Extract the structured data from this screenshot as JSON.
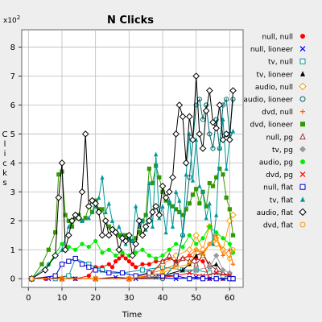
{
  "chart_data": {
    "type": "line",
    "title": "N Clicks",
    "xlabel": "Time",
    "ylabel": "Clicks",
    "y_multiplier_label": "x10",
    "y_multiplier_exp": "2",
    "xlim": [
      -2,
      64
    ],
    "ylim": [
      -0.3,
      8.6
    ],
    "x_ticks": [
      0,
      10,
      20,
      30,
      40,
      50,
      60
    ],
    "y_ticks": [
      0,
      1,
      2,
      3,
      4,
      5,
      6,
      7,
      8
    ],
    "grid": true,
    "legend_position": "right",
    "series": [
      {
        "name": "null, null",
        "color": "#ff0000",
        "marker": "circle-filled",
        "x": [
          1,
          5,
          10,
          14,
          18,
          20,
          22,
          24,
          25,
          26,
          27,
          28,
          29,
          30,
          31,
          32,
          34,
          36,
          38,
          40,
          42,
          44,
          46,
          48,
          50,
          52,
          54,
          56,
          58,
          60,
          61
        ],
        "y": [
          0,
          0,
          0,
          0,
          0.1,
          0.4,
          0.4,
          0.5,
          0.4,
          0.6,
          0.7,
          0.8,
          0.7,
          0.6,
          0.5,
          0.4,
          0.5,
          0.5,
          0.6,
          0.6,
          0.7,
          0.6,
          0.7,
          0.8,
          0.7,
          0.6,
          0,
          0,
          0,
          0,
          0
        ]
      },
      {
        "name": "null, lioneer",
        "color": "#0000ff",
        "marker": "x",
        "x": [
          1,
          6,
          12,
          14,
          20,
          26,
          32,
          38,
          44,
          50,
          54,
          58,
          61
        ],
        "y": [
          0,
          0,
          0.1,
          0,
          0,
          0.05,
          0,
          0.05,
          0,
          0.05,
          0,
          0,
          0
        ]
      },
      {
        "name": "tv, null",
        "color": "#009999",
        "marker": "square-open",
        "x": [
          1,
          8,
          12,
          14,
          18,
          22,
          28,
          34,
          40,
          46,
          50,
          54,
          58,
          61
        ],
        "y": [
          0,
          0,
          0.1,
          0.7,
          0.5,
          0.3,
          0.2,
          0.3,
          0.4,
          0.3,
          0.3,
          0.2,
          0.1,
          0
        ]
      },
      {
        "name": "tv, lioneer",
        "color": "#000000",
        "marker": "triangle-filled",
        "x": [
          1,
          10,
          20,
          30,
          40,
          46,
          48,
          50,
          52,
          54,
          56,
          58,
          61
        ],
        "y": [
          0,
          0,
          0,
          0,
          0.1,
          0.3,
          0.5,
          0.8,
          0.9,
          0.4,
          0.5,
          0.2,
          0
        ]
      },
      {
        "name": "audio, null",
        "color": "#ff9900",
        "marker": "diamond-open",
        "x": [
          1,
          10,
          20,
          30,
          36,
          40,
          44,
          48,
          50,
          52,
          54,
          56,
          58,
          60,
          61
        ],
        "y": [
          0,
          0,
          0,
          0,
          0.2,
          0.5,
          0.8,
          1.0,
          1.5,
          1.0,
          1.8,
          1.2,
          1.0,
          2.0,
          2.2
        ]
      },
      {
        "name": "audio, lioneer",
        "color": "#006666",
        "marker": "circle-open",
        "x": [
          1,
          10,
          20,
          30,
          40,
          44,
          46,
          48,
          50,
          51,
          52,
          53,
          54,
          55,
          56,
          57,
          58,
          59,
          60,
          61
        ],
        "y": [
          0,
          0,
          0,
          0,
          0,
          0.5,
          1.5,
          3.5,
          6.0,
          6.2,
          5.5,
          6.0,
          5.0,
          4.5,
          5.5,
          4.5,
          6.0,
          6.2,
          5.0,
          6.2
        ]
      },
      {
        "name": "dvd, null",
        "color": "#ff6600",
        "marker": "plus",
        "x": [
          1,
          10,
          20,
          30,
          40,
          44,
          48,
          50,
          52,
          54,
          56,
          58,
          60,
          61
        ],
        "y": [
          0,
          0,
          0,
          0,
          0.3,
          0.5,
          0.8,
          1.0,
          0.9,
          1.2,
          1.5,
          0.8,
          1.0,
          0.5
        ]
      },
      {
        "name": "dvd, lioneer",
        "color": "#339900",
        "marker": "square-filled",
        "x": [
          1,
          4,
          6,
          8,
          9,
          10,
          11,
          12,
          13,
          14,
          15,
          16,
          17,
          18,
          19,
          20,
          21,
          22,
          23,
          24,
          25,
          26,
          27,
          28,
          29,
          30,
          31,
          32,
          33,
          34,
          35,
          36,
          37,
          38,
          39,
          40,
          41,
          42,
          43,
          44,
          45,
          46,
          47,
          48,
          49,
          50,
          51,
          52,
          53,
          54,
          55,
          56,
          57,
          58,
          59,
          60,
          61
        ],
        "y": [
          0,
          0.5,
          1.0,
          1.6,
          3.6,
          3.7,
          2.2,
          2.0,
          1.8,
          2.1,
          2.2,
          2.0,
          2.1,
          2.5,
          2.3,
          2.7,
          2.4,
          2.4,
          2.0,
          1.8,
          1.7,
          1.6,
          1.5,
          1.5,
          1.5,
          1.4,
          1.3,
          1.4,
          1.6,
          2.0,
          2.2,
          3.8,
          3.3,
          3.9,
          3.5,
          3.0,
          2.7,
          2.6,
          2.5,
          2.4,
          2.3,
          2.2,
          2.4,
          2.6,
          2.9,
          3.1,
          2.6,
          3.0,
          2.5,
          3.3,
          3.2,
          3.5,
          3.8,
          3.6,
          2.8,
          2.4,
          1.5
        ]
      },
      {
        "name": "null, pg",
        "color": "#993333",
        "marker": "triangle-open",
        "x": [
          1,
          10,
          20,
          30,
          36,
          40,
          42,
          44,
          46,
          48,
          50,
          52,
          54,
          56,
          58,
          60,
          61
        ],
        "y": [
          0,
          0,
          0,
          0,
          0.1,
          0.6,
          0.8,
          0.5,
          0.7,
          0.6,
          0.5,
          0.8,
          0.5,
          0.3,
          0.2,
          0.1,
          0
        ]
      },
      {
        "name": "tv, pg",
        "color": "#999999",
        "marker": "diamond-filled",
        "x": [
          1,
          10,
          20,
          30,
          40,
          50,
          54,
          56,
          58,
          60,
          61
        ],
        "y": [
          0,
          0,
          0,
          0,
          0.1,
          0.3,
          0.4,
          0.8,
          0.3,
          0.2,
          0
        ]
      },
      {
        "name": "audio, pg",
        "color": "#00ee00",
        "marker": "circle-filled",
        "x": [
          1,
          6,
          10,
          12,
          14,
          16,
          18,
          20,
          22,
          24,
          26,
          28,
          30,
          32,
          34,
          36,
          38,
          40,
          42,
          44,
          46,
          48,
          50,
          52,
          54,
          56,
          58,
          60,
          61
        ],
        "y": [
          0,
          0.5,
          1.2,
          1.1,
          1.0,
          1.2,
          1.1,
          1.3,
          0.9,
          1.0,
          0.8,
          0.9,
          0.8,
          0.9,
          1.0,
          0.8,
          0.7,
          0.8,
          1.0,
          1.2,
          1.1,
          1.5,
          1.2,
          1.4,
          1.8,
          1.6,
          1.4,
          1.2,
          0.9
        ]
      },
      {
        "name": "dvd, pg",
        "color": "#ff0000",
        "marker": "x",
        "x": [
          1,
          10,
          20,
          30,
          40,
          44,
          48,
          52,
          56,
          60,
          61
        ],
        "y": [
          0,
          0,
          0,
          0,
          0.05,
          0.1,
          0.2,
          0.1,
          0.2,
          0.1,
          0
        ]
      },
      {
        "name": "null, flat",
        "color": "#0000cc",
        "marker": "square-open",
        "x": [
          1,
          8,
          10,
          12,
          14,
          16,
          18,
          20,
          24,
          28,
          32,
          36,
          40,
          44,
          48,
          52,
          56,
          60,
          61
        ],
        "y": [
          0,
          0.1,
          0.5,
          0.6,
          0.7,
          0.5,
          0.4,
          0.3,
          0.2,
          0.2,
          0.1,
          0.2,
          0.1,
          0.1,
          0,
          0,
          0,
          0,
          0
        ]
      },
      {
        "name": "tv, flat",
        "color": "#009999",
        "marker": "triangle-filled",
        "x": [
          1,
          6,
          10,
          12,
          14,
          16,
          18,
          20,
          21,
          22,
          23,
          24,
          25,
          26,
          27,
          28,
          29,
          30,
          31,
          32,
          33,
          34,
          35,
          36,
          37,
          38,
          39,
          40,
          41,
          42,
          43,
          44,
          45,
          46,
          47,
          48,
          49,
          50,
          51,
          52,
          53,
          54,
          55,
          56,
          57,
          58,
          59,
          60,
          61
        ],
        "y": [
          0,
          0.5,
          1.0,
          1.8,
          2.2,
          2.0,
          2.1,
          2.5,
          2.8,
          3.5,
          2.3,
          2.6,
          2.0,
          1.6,
          1.8,
          1.5,
          1.2,
          1.4,
          1.3,
          2.5,
          1.8,
          2.0,
          1.7,
          3.3,
          1.8,
          4.3,
          2.1,
          2.5,
          1.6,
          2.7,
          1.8,
          3.0,
          2.7,
          1.5,
          3.6,
          5.0,
          3.4,
          4.8,
          3.2,
          3.0,
          2.1,
          2.6,
          1.2,
          2.2,
          4.5,
          5.5,
          3.8,
          4.8,
          5.1
        ]
      },
      {
        "name": "audio, flat",
        "color": "#000000",
        "marker": "diamond-open",
        "x": [
          1,
          5,
          8,
          9,
          10,
          11,
          12,
          13,
          14,
          15,
          16,
          17,
          18,
          19,
          20,
          21,
          22,
          23,
          24,
          25,
          26,
          27,
          28,
          29,
          30,
          31,
          32,
          33,
          34,
          35,
          36,
          37,
          38,
          39,
          40,
          41,
          42,
          43,
          44,
          45,
          46,
          47,
          48,
          49,
          50,
          51,
          52,
          53,
          54,
          55,
          56,
          57,
          58,
          59,
          60,
          61
        ],
        "y": [
          0,
          0.3,
          0.8,
          2.8,
          4.0,
          1.0,
          1.5,
          2.0,
          2.2,
          2.1,
          3.0,
          5.0,
          2.5,
          2.7,
          2.6,
          2.3,
          1.5,
          2.0,
          1.5,
          1.7,
          1.6,
          1.0,
          1.4,
          1.3,
          1.5,
          0.8,
          1.2,
          2.0,
          1.5,
          1.8,
          2.0,
          2.3,
          2.5,
          2.2,
          3.2,
          2.8,
          3.0,
          3.5,
          5.0,
          6.0,
          5.6,
          4.0,
          5.6,
          4.8,
          7.0,
          5.0,
          4.5,
          5.8,
          6.5,
          5.4,
          5.2,
          6.0,
          4.8,
          5.0,
          4.8,
          6.5
        ]
      },
      {
        "name": "dvd, flat",
        "color": "#ff9900",
        "marker": "circle-open",
        "x": [
          1,
          10,
          20,
          30,
          40,
          44,
          48,
          50,
          52,
          54,
          56,
          58,
          60,
          61
        ],
        "y": [
          0,
          0,
          0,
          0,
          0.2,
          0.4,
          0.5,
          1.0,
          0.8,
          1.2,
          1.4,
          1.0,
          0.7,
          1.0
        ]
      }
    ]
  }
}
